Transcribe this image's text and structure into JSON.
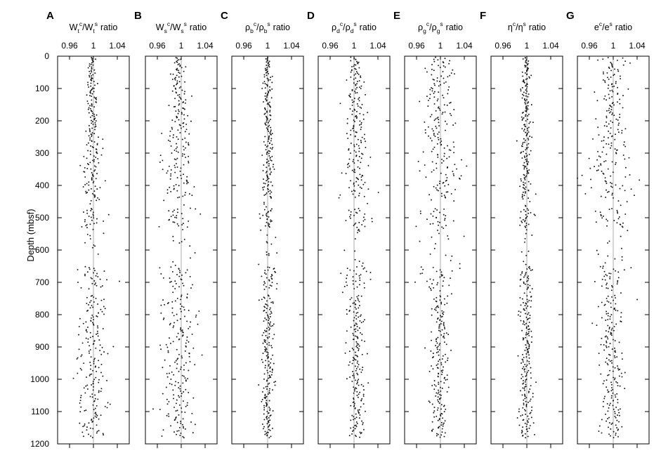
{
  "figure": {
    "ylabel": "Depth (mbsf)",
    "y_ticks": [
      "0",
      "100",
      "200",
      "300",
      "400",
      "500",
      "600",
      "700",
      "800",
      "900",
      "1000",
      "1100",
      "1200"
    ],
    "x_ticks": [
      "0.96",
      "1",
      "1.04"
    ],
    "ratio_word": "ratio"
  },
  "chart_data": [
    {
      "type": "scatter",
      "panel_letter": "A",
      "title_parts": [
        {
          "t": "W",
          "sup": false
        },
        {
          "t": "t",
          "sub": true
        },
        {
          "t": "c",
          "sup": true
        },
        {
          "t": "/W",
          "sup": false
        },
        {
          "t": "t",
          "sub": true
        },
        {
          "t": "s",
          "sup": true
        }
      ],
      "xlim": [
        0.94,
        1.06
      ],
      "ylim": [
        1200,
        0
      ],
      "reference_line": 1.0,
      "grid": false,
      "series": [
        {
          "x_center": 0.998,
          "profile": [
            [
              0,
              0.004
            ],
            [
              200,
              0.005
            ],
            [
              300,
              0.008
            ],
            [
              450,
              0.009
            ],
            [
              520,
              0.01
            ],
            [
              700,
              0.012
            ],
            [
              800,
              0.01
            ],
            [
              1000,
              0.012
            ],
            [
              1200,
              0.01
            ]
          ],
          "gaps": [
            [
              440,
              470
            ],
            [
              530,
              650
            ],
            [
              720,
              740
            ]
          ]
        }
      ]
    },
    {
      "type": "scatter",
      "panel_letter": "B",
      "title_parts": [
        {
          "t": "W",
          "sup": false
        },
        {
          "t": "s",
          "sub": true
        },
        {
          "t": "c",
          "sup": true
        },
        {
          "t": "/W",
          "sup": false
        },
        {
          "t": "s",
          "sub": true
        },
        {
          "t": "s",
          "sup": true
        }
      ],
      "xlim": [
        0.94,
        1.06
      ],
      "ylim": [
        1200,
        0
      ],
      "reference_line": 1.0,
      "grid": false,
      "series": [
        {
          "x_center": 0.996,
          "profile": [
            [
              0,
              0.006
            ],
            [
              200,
              0.008
            ],
            [
              300,
              0.012
            ],
            [
              450,
              0.014
            ],
            [
              520,
              0.016
            ],
            [
              700,
              0.018
            ],
            [
              800,
              0.014
            ],
            [
              1000,
              0.016
            ],
            [
              1200,
              0.014
            ]
          ],
          "gaps": [
            [
              440,
              470
            ],
            [
              530,
              650
            ],
            [
              720,
              740
            ]
          ]
        }
      ]
    },
    {
      "type": "scatter",
      "panel_letter": "C",
      "title_parts": [
        {
          "t": "ρ",
          "sup": false
        },
        {
          "t": "b",
          "sub": true
        },
        {
          "t": "c",
          "sup": true
        },
        {
          "t": "/ρ",
          "sup": false
        },
        {
          "t": "b",
          "sub": true
        },
        {
          "t": "s",
          "sup": true
        }
      ],
      "xlim": [
        0.94,
        1.06
      ],
      "ylim": [
        1200,
        0
      ],
      "reference_line": 1.0,
      "grid": false,
      "series": [
        {
          "x_center": 1.0,
          "profile": [
            [
              0,
              0.003
            ],
            [
              200,
              0.004
            ],
            [
              300,
              0.005
            ],
            [
              450,
              0.005
            ],
            [
              520,
              0.006
            ],
            [
              700,
              0.007
            ],
            [
              800,
              0.005
            ],
            [
              1000,
              0.005
            ],
            [
              1200,
              0.005
            ]
          ],
          "gaps": [
            [
              440,
              470
            ],
            [
              530,
              650
            ],
            [
              720,
              740
            ]
          ]
        }
      ]
    },
    {
      "type": "scatter",
      "panel_letter": "D",
      "title_parts": [
        {
          "t": "ρ",
          "sup": false
        },
        {
          "t": "d",
          "sub": true
        },
        {
          "t": "c",
          "sup": true
        },
        {
          "t": "/ρ",
          "sup": false
        },
        {
          "t": "d",
          "sub": true
        },
        {
          "t": "s",
          "sup": true
        }
      ],
      "xlim": [
        0.94,
        1.06
      ],
      "ylim": [
        1200,
        0
      ],
      "reference_line": 1.0,
      "grid": false,
      "series": [
        {
          "x_center": 1.003,
          "profile": [
            [
              0,
              0.004
            ],
            [
              200,
              0.008
            ],
            [
              300,
              0.01
            ],
            [
              450,
              0.012
            ],
            [
              520,
              0.014
            ],
            [
              700,
              0.014
            ],
            [
              800,
              0.006
            ],
            [
              1000,
              0.007
            ],
            [
              1200,
              0.007
            ]
          ],
          "gaps": [
            [
              440,
              470
            ],
            [
              530,
              650
            ],
            [
              720,
              740
            ]
          ]
        }
      ]
    },
    {
      "type": "scatter",
      "panel_letter": "E",
      "title_parts": [
        {
          "t": "ρ",
          "sup": false
        },
        {
          "t": "g",
          "sub": true
        },
        {
          "t": "c",
          "sup": true
        },
        {
          "t": "/ρ",
          "sup": false
        },
        {
          "t": "g",
          "sub": true
        },
        {
          "t": "s",
          "sup": true
        }
      ],
      "xlim": [
        0.94,
        1.06
      ],
      "ylim": [
        1200,
        0
      ],
      "reference_line": 1.0,
      "grid": false,
      "series": [
        {
          "x_center": 0.999,
          "profile": [
            [
              0,
              0.01
            ],
            [
              200,
              0.014
            ],
            [
              300,
              0.016
            ],
            [
              450,
              0.018
            ],
            [
              520,
              0.018
            ],
            [
              700,
              0.016
            ],
            [
              800,
              0.008
            ],
            [
              1000,
              0.007
            ],
            [
              1200,
              0.007
            ]
          ],
          "gaps": [
            [
              440,
              470
            ],
            [
              530,
              650
            ],
            [
              720,
              740
            ]
          ]
        }
      ]
    },
    {
      "type": "scatter",
      "panel_letter": "F",
      "title_parts": [
        {
          "t": "η",
          "sup": false
        },
        {
          "t": "c",
          "sup": true
        },
        {
          "t": "/η",
          "sup": false
        },
        {
          "t": "s",
          "sup": true
        }
      ],
      "xlim": [
        0.94,
        1.06
      ],
      "ylim": [
        1200,
        0
      ],
      "reference_line": 1.0,
      "grid": false,
      "series": [
        {
          "x_center": 0.999,
          "profile": [
            [
              0,
              0.003
            ],
            [
              200,
              0.004
            ],
            [
              300,
              0.005
            ],
            [
              450,
              0.006
            ],
            [
              520,
              0.006
            ],
            [
              700,
              0.007
            ],
            [
              800,
              0.005
            ],
            [
              1000,
              0.006
            ],
            [
              1200,
              0.006
            ]
          ],
          "gaps": [
            [
              440,
              470
            ],
            [
              530,
              650
            ],
            [
              720,
              740
            ]
          ]
        }
      ]
    },
    {
      "type": "scatter",
      "panel_letter": "G",
      "title_parts": [
        {
          "t": "e",
          "sup": false
        },
        {
          "t": "c",
          "sup": true
        },
        {
          "t": "/e",
          "sup": false
        },
        {
          "t": "s",
          "sup": true
        }
      ],
      "xlim": [
        0.94,
        1.06
      ],
      "ylim": [
        1200,
        0
      ],
      "reference_line": 1.0,
      "grid": false,
      "series": [
        {
          "x_center": 0.996,
          "profile": [
            [
              0,
              0.008
            ],
            [
              200,
              0.012
            ],
            [
              300,
              0.018
            ],
            [
              450,
              0.02
            ],
            [
              520,
              0.018
            ],
            [
              700,
              0.016
            ],
            [
              800,
              0.009
            ],
            [
              1000,
              0.01
            ],
            [
              1200,
              0.009
            ]
          ],
          "gaps": [
            [
              440,
              470
            ],
            [
              530,
              650
            ],
            [
              720,
              740
            ]
          ]
        }
      ]
    }
  ]
}
